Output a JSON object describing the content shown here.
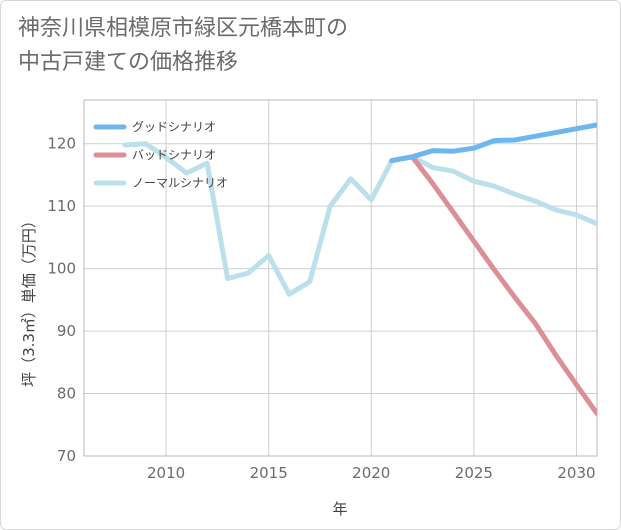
{
  "title_lines": [
    "神奈川県相模原市緑区元橋本町の",
    "中古戸建ての価格推移"
  ],
  "chart_data": {
    "type": "line",
    "title": "神奈川県相模原市緑区元橋本町の中古戸建ての価格推移",
    "xlabel": "年",
    "ylabel": "坪（3.3㎡）単価（万円）",
    "xlim": [
      2006,
      2031
    ],
    "ylim": [
      70,
      127
    ],
    "x_ticks": [
      2010,
      2015,
      2020,
      2025,
      2030
    ],
    "y_ticks": [
      70,
      80,
      90,
      100,
      110,
      120
    ],
    "grid": true,
    "legend_position": "top-left",
    "series": [
      {
        "name": "グッドシナリオ",
        "color": "#6cb8ee",
        "x": [
          2021,
          2022,
          2023,
          2024,
          2025,
          2026,
          2027,
          2028,
          2029,
          2030,
          2031
        ],
        "values": [
          117.3,
          117.9,
          118.9,
          118.8,
          119.3,
          120.5,
          120.6,
          121.2,
          121.8,
          122.4,
          123
        ]
      },
      {
        "name": "バッドシナリオ",
        "color": "#db8f96",
        "x": [
          2021,
          2022,
          2023,
          2024,
          2025,
          2026,
          2027,
          2028,
          2029,
          2030,
          2031
        ],
        "values": [
          117.3,
          117.9,
          113.6,
          109.0,
          104.4,
          99.8,
          95.4,
          91.2,
          86.1,
          81.4,
          76.8
        ]
      },
      {
        "name": "ノーマルシナリオ",
        "color": "#bcdfec",
        "x": [
          2008,
          2009,
          2010,
          2011,
          2012,
          2013,
          2014,
          2015,
          2016,
          2017,
          2018,
          2019,
          2020,
          2021,
          2022,
          2023,
          2024,
          2025,
          2026,
          2027,
          2028,
          2029,
          2030,
          2031
        ],
        "values": [
          119.8,
          120.0,
          117.8,
          115.3,
          116.9,
          98.4,
          99.3,
          102.1,
          95.9,
          97.9,
          110.0,
          114.4,
          111.0,
          117.3,
          117.9,
          116.2,
          115.6,
          114.0,
          113.2,
          111.9,
          110.8,
          109.4,
          108.6,
          107.2
        ]
      }
    ]
  }
}
